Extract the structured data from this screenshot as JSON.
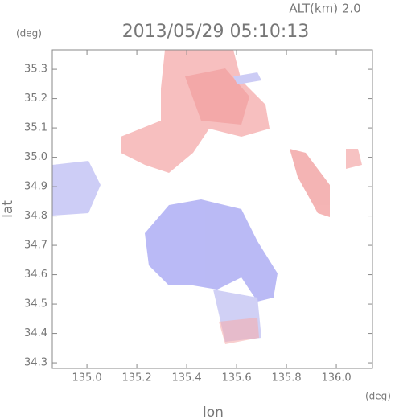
{
  "chart_data": {
    "type": "radar-map",
    "title": "2013/05/29 05:10:13",
    "subtitle": "ALT(km) 2.0",
    "y_unit": "(deg)",
    "x_unit": "(deg)",
    "xlabel": "lon",
    "ylabel": "lat",
    "xlim": [
      134.861,
      136.145
    ],
    "ylim": [
      34.281,
      35.366
    ],
    "xticks": [
      {
        "value": 135.0,
        "label": "135.0"
      },
      135.2,
      135.4,
      135.6,
      135.8,
      {
        "value": 136.0,
        "label": "136.0"
      }
    ],
    "yticks": [
      34.3,
      34.4,
      34.5,
      34.6,
      34.7,
      34.8,
      34.9,
      {
        "value": 35.0,
        "label": "35.0"
      },
      35.1,
      35.2,
      35.3
    ]
  }
}
